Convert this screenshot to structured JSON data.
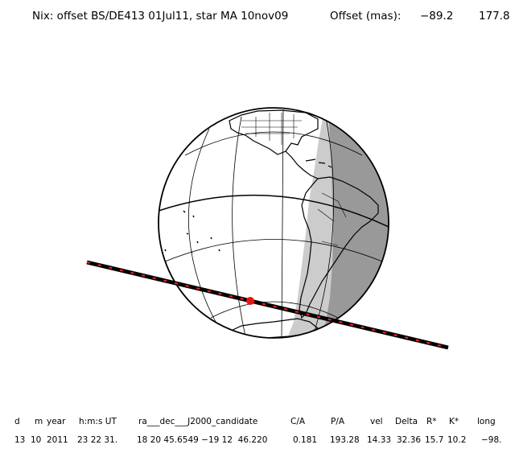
{
  "header": {
    "title": "Nix: offset BS/DE413 01Jul11, star MA 10nov09",
    "offset_label": "Offset (mas):",
    "offset_x": "−89.2",
    "offset_y": "177.8"
  },
  "table": {
    "columns": [
      {
        "header": "d",
        "value": "13"
      },
      {
        "header": "m",
        "value": "10"
      },
      {
        "header": "year",
        "value": "2011"
      },
      {
        "header": "h:m:s UT",
        "value": "23 22 31."
      },
      {
        "header": "ra___dec___J2000_candidate",
        "value": "18 20 45.6549 −19 12  46.220"
      },
      {
        "header": "C/A",
        "value": "0.181"
      },
      {
        "header": "P/A",
        "value": "193.28"
      },
      {
        "header": "vel",
        "value": "14.33"
      },
      {
        "header": "Delta",
        "value": "32.36"
      },
      {
        "header": "R*",
        "value": "15.7"
      },
      {
        "header": "K*",
        "value": "10.2"
      },
      {
        "header": "long",
        "value": "−98."
      }
    ]
  },
  "colors": {
    "night": "#999999",
    "twilight": "#cccccc",
    "track_outer": "#000000",
    "track_dash": "#ff2020",
    "event_marker": "#ee1111"
  }
}
